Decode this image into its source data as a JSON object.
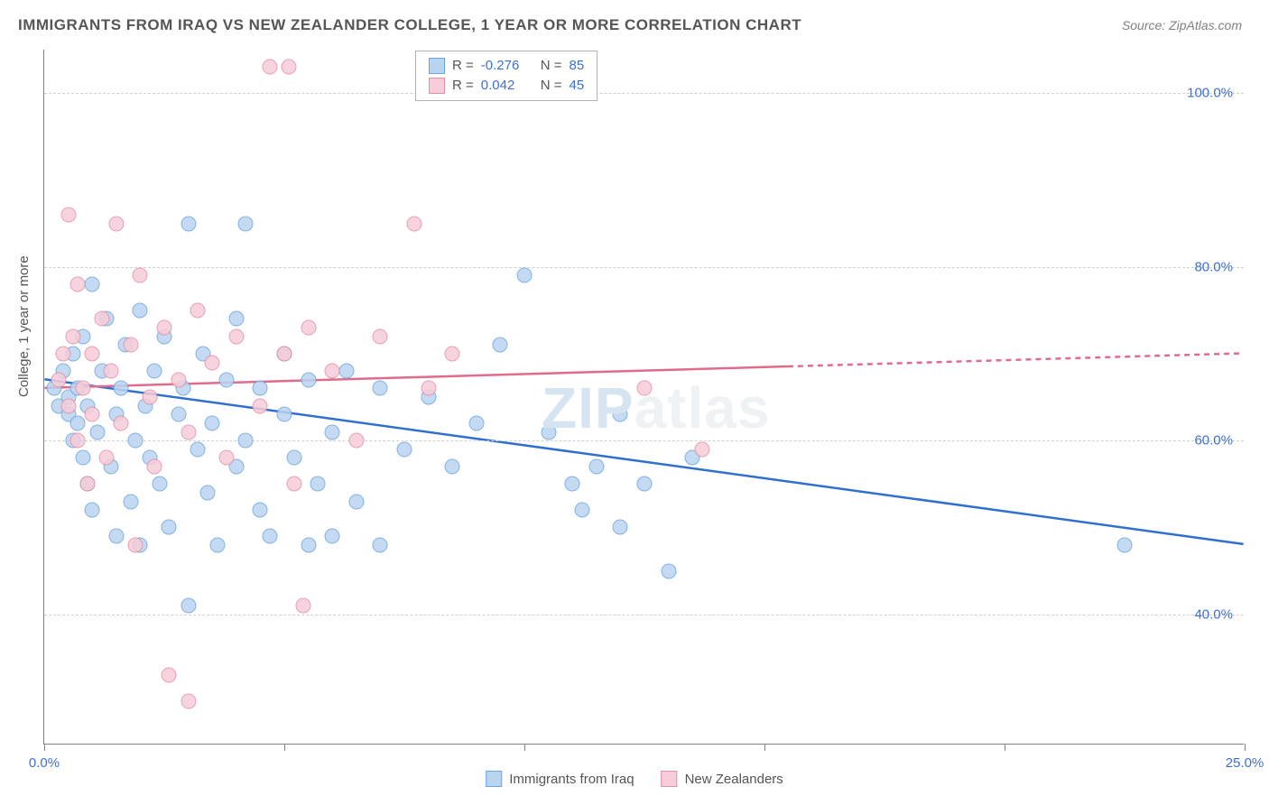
{
  "title": "IMMIGRANTS FROM IRAQ VS NEW ZEALANDER COLLEGE, 1 YEAR OR MORE CORRELATION CHART",
  "source_label": "Source:",
  "source_value": "ZipAtlas.com",
  "watermark": {
    "zip": "ZIP",
    "atlas": "atlas"
  },
  "chart": {
    "type": "scatter",
    "ylabel": "College, 1 year or more",
    "xlim": [
      0,
      25
    ],
    "ylim": [
      25,
      105
    ],
    "xticks": [
      0,
      5,
      10,
      15,
      20,
      25
    ],
    "xtick_labels": {
      "0": "0.0%",
      "25": "25.0%"
    },
    "yticks": [
      40,
      60,
      80,
      100
    ],
    "ytick_labels": [
      "40.0%",
      "60.0%",
      "80.0%",
      "100.0%"
    ],
    "background_color": "#ffffff",
    "grid_color": "#d0d0d0",
    "axis_color": "#808080",
    "marker_radius": 8.5,
    "marker_opacity": 0.85,
    "series": [
      {
        "name": "Immigrants from Iraq",
        "fill_color": "#b9d4f0",
        "stroke_color": "#6ea5de",
        "line_color": "#2f6fd0",
        "R": "-0.276",
        "N": "85",
        "trend": {
          "x1": 0,
          "y1": 67,
          "x2": 25,
          "y2": 48,
          "dash_from_x": null
        },
        "points": [
          [
            0.2,
            66
          ],
          [
            0.3,
            64
          ],
          [
            0.4,
            68
          ],
          [
            0.5,
            65
          ],
          [
            0.5,
            63
          ],
          [
            0.6,
            70
          ],
          [
            0.6,
            60
          ],
          [
            0.7,
            66
          ],
          [
            0.7,
            62
          ],
          [
            0.8,
            58
          ],
          [
            0.8,
            72
          ],
          [
            0.9,
            64
          ],
          [
            0.9,
            55
          ],
          [
            1.0,
            78
          ],
          [
            1.0,
            52
          ],
          [
            1.1,
            61
          ],
          [
            1.2,
            68
          ],
          [
            1.3,
            74
          ],
          [
            1.4,
            57
          ],
          [
            1.5,
            63
          ],
          [
            1.5,
            49
          ],
          [
            1.6,
            66
          ],
          [
            1.7,
            71
          ],
          [
            1.8,
            53
          ],
          [
            1.9,
            60
          ],
          [
            2.0,
            75
          ],
          [
            2.0,
            48
          ],
          [
            2.1,
            64
          ],
          [
            2.2,
            58
          ],
          [
            2.3,
            68
          ],
          [
            2.4,
            55
          ],
          [
            2.5,
            72
          ],
          [
            2.6,
            50
          ],
          [
            2.8,
            63
          ],
          [
            2.9,
            66
          ],
          [
            3.0,
            85
          ],
          [
            3.0,
            41
          ],
          [
            3.2,
            59
          ],
          [
            3.3,
            70
          ],
          [
            3.4,
            54
          ],
          [
            3.5,
            62
          ],
          [
            3.6,
            48
          ],
          [
            3.8,
            67
          ],
          [
            4.0,
            57
          ],
          [
            4.0,
            74
          ],
          [
            4.2,
            60
          ],
          [
            4.2,
            85
          ],
          [
            4.5,
            52
          ],
          [
            4.5,
            66
          ],
          [
            4.7,
            49
          ],
          [
            5.0,
            63
          ],
          [
            5.0,
            70
          ],
          [
            5.2,
            58
          ],
          [
            5.5,
            48
          ],
          [
            5.5,
            67
          ],
          [
            5.7,
            55
          ],
          [
            6.0,
            61
          ],
          [
            6.0,
            49
          ],
          [
            6.3,
            68
          ],
          [
            6.5,
            53
          ],
          [
            7.0,
            66
          ],
          [
            7.0,
            48
          ],
          [
            7.5,
            59
          ],
          [
            8.0,
            65
          ],
          [
            8.5,
            57
          ],
          [
            9.0,
            62
          ],
          [
            9.5,
            71
          ],
          [
            10.0,
            79
          ],
          [
            10.5,
            61
          ],
          [
            11.0,
            55
          ],
          [
            11.2,
            52
          ],
          [
            11.5,
            57
          ],
          [
            12.0,
            50
          ],
          [
            12.0,
            63
          ],
          [
            12.5,
            55
          ],
          [
            13.0,
            45
          ],
          [
            13.5,
            58
          ],
          [
            22.5,
            48
          ]
        ]
      },
      {
        "name": "New Zealanders",
        "fill_color": "#f6cdd8",
        "stroke_color": "#e58fa7",
        "line_color": "#e16b8c",
        "R": "0.042",
        "N": "45",
        "trend": {
          "x1": 0,
          "y1": 66,
          "x2": 25,
          "y2": 70,
          "dash_from_x": 15.5
        },
        "points": [
          [
            0.3,
            67
          ],
          [
            0.4,
            70
          ],
          [
            0.5,
            64
          ],
          [
            0.5,
            86
          ],
          [
            0.6,
            72
          ],
          [
            0.7,
            60
          ],
          [
            0.7,
            78
          ],
          [
            0.8,
            66
          ],
          [
            0.9,
            55
          ],
          [
            1.0,
            70
          ],
          [
            1.0,
            63
          ],
          [
            1.2,
            74
          ],
          [
            1.3,
            58
          ],
          [
            1.4,
            68
          ],
          [
            1.5,
            85
          ],
          [
            1.6,
            62
          ],
          [
            1.8,
            71
          ],
          [
            1.9,
            48
          ],
          [
            2.0,
            79
          ],
          [
            2.2,
            65
          ],
          [
            2.3,
            57
          ],
          [
            2.5,
            73
          ],
          [
            2.6,
            33
          ],
          [
            2.8,
            67
          ],
          [
            3.0,
            61
          ],
          [
            3.0,
            30
          ],
          [
            3.2,
            75
          ],
          [
            3.5,
            69
          ],
          [
            3.8,
            58
          ],
          [
            4.0,
            72
          ],
          [
            4.5,
            64
          ],
          [
            4.7,
            103
          ],
          [
            5.0,
            70
          ],
          [
            5.1,
            103
          ],
          [
            5.2,
            55
          ],
          [
            5.4,
            41
          ],
          [
            5.5,
            73
          ],
          [
            6.0,
            68
          ],
          [
            6.5,
            60
          ],
          [
            7.0,
            72
          ],
          [
            7.7,
            85
          ],
          [
            8.0,
            66
          ],
          [
            8.5,
            70
          ],
          [
            12.5,
            66
          ],
          [
            13.7,
            59
          ]
        ]
      }
    ],
    "legend_top_labels": {
      "R": "R =",
      "N": "N ="
    },
    "legend_bottom": [
      "Immigrants from Iraq",
      "New Zealanders"
    ]
  }
}
